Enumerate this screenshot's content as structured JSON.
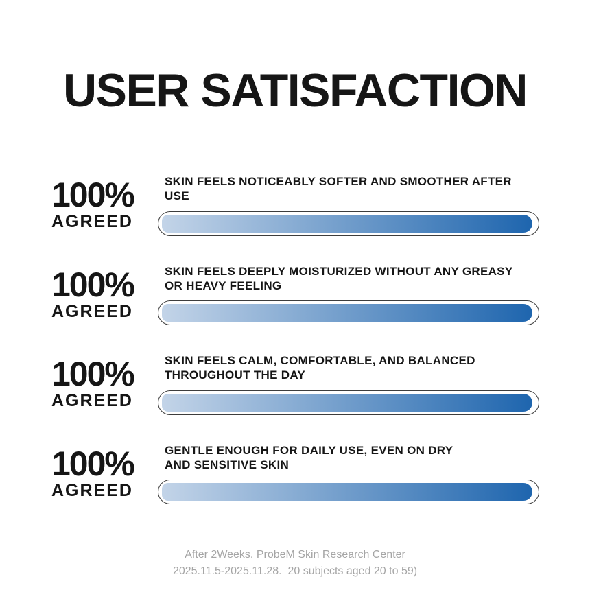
{
  "page": {
    "title": "USER SATISFACTION",
    "background_color": "#ffffff",
    "text_color": "#161616"
  },
  "bar_style": {
    "gradient_start": "#c3d4e8",
    "gradient_end": "#1e65ae",
    "outline_color": "#3d3d3d",
    "track_color": "#ffffff"
  },
  "rows": [
    {
      "percent_label": "100%",
      "agreed_label": "AGREED",
      "statement": "SKIN FEELS NOTICEABLY SOFTER AND SMOOTHER AFTER USE",
      "percent": 100
    },
    {
      "percent_label": "100%",
      "agreed_label": "AGREED",
      "statement": "SKIN FEELS DEEPLY MOISTURIZED WITHOUT ANY GREASY\nOR HEAVY FEELING",
      "percent": 100
    },
    {
      "percent_label": "100%",
      "agreed_label": "AGREED",
      "statement": "SKIN FEELS CALM, COMFORTABLE, AND BALANCED\nTHROUGHOUT THE DAY",
      "percent": 100
    },
    {
      "percent_label": "100%",
      "agreed_label": "AGREED",
      "statement": "GENTLE ENOUGH FOR DAILY USE, EVEN ON DRY\nAND SENSITIVE SKIN",
      "percent": 100
    }
  ],
  "footer": {
    "line1": "After 2Weeks. ProbeM Skin Research Center",
    "line2": "2025.11.5-2025.11.28.  20 subjects aged 20 to 59)"
  },
  "chart_data": {
    "type": "bar",
    "title": "USER SATISFACTION",
    "categories": [
      "SKIN FEELS NOTICEABLY SOFTER AND SMOOTHER AFTER USE",
      "SKIN FEELS DEEPLY MOISTURIZED WITHOUT ANY GREASY OR HEAVY FEELING",
      "SKIN FEELS CALM, COMFORTABLE, AND BALANCED THROUGHOUT THE DAY",
      "GENTLE ENOUGH FOR DAILY USE, EVEN ON DRY AND SENSITIVE SKIN"
    ],
    "values": [
      100,
      100,
      100,
      100
    ],
    "value_labels": [
      "100% AGREED",
      "100% AGREED",
      "100% AGREED",
      "100% AGREED"
    ],
    "xlabel": "",
    "ylabel": "",
    "xlim": [
      0,
      100
    ],
    "orientation": "horizontal",
    "grid": false,
    "legend": false,
    "annotations": [
      "After 2Weeks. ProbeM Skin Research Center",
      "2025.11.5-2025.11.28.  20 subjects aged 20 to 59)"
    ]
  }
}
